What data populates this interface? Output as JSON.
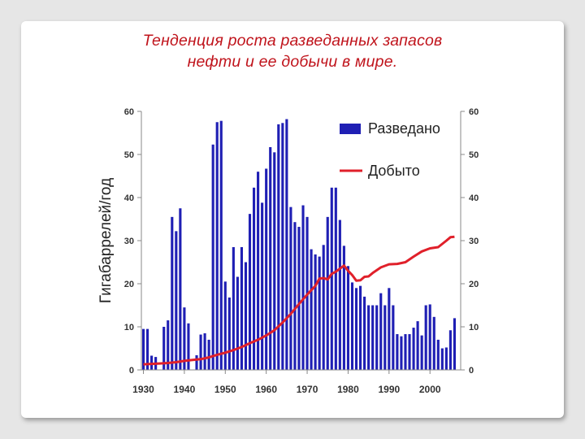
{
  "slide": {
    "title_line1": "Тенденция роста разведанных запасов",
    "title_line2": "нефти и ее добычи в мире."
  },
  "chart_data": {
    "type": "bar",
    "title": "",
    "ylabel": "Гигабаррелей/год",
    "ylim": [
      0,
      60
    ],
    "y_ticks": [
      0,
      10,
      20,
      30,
      40,
      50,
      60
    ],
    "x_ticks": [
      1930,
      1940,
      1950,
      1960,
      1970,
      1980,
      1990,
      2000
    ],
    "legend_position": "top-right",
    "colors": {
      "bars": "#1f1fb4",
      "line": "#e0202a",
      "axis": "#888888"
    },
    "series": [
      {
        "name": "Разведано",
        "type": "bar",
        "x": [
          1930,
          1931,
          1932,
          1933,
          1934,
          1935,
          1936,
          1937,
          1938,
          1939,
          1940,
          1941,
          1942,
          1943,
          1944,
          1945,
          1946,
          1947,
          1948,
          1949,
          1950,
          1951,
          1952,
          1953,
          1954,
          1955,
          1956,
          1957,
          1958,
          1959,
          1960,
          1961,
          1962,
          1963,
          1964,
          1965,
          1966,
          1967,
          1968,
          1969,
          1970,
          1971,
          1972,
          1973,
          1974,
          1975,
          1976,
          1977,
          1978,
          1979,
          1980,
          1981,
          1982,
          1983,
          1984,
          1985,
          1986,
          1987,
          1988,
          1989,
          1990,
          1991,
          1992,
          1993,
          1994,
          1995,
          1996,
          1997,
          1998,
          1999,
          2000,
          2001,
          2002,
          2003,
          2004,
          2005,
          2006
        ],
        "values": [
          9.5,
          9.5,
          3.3,
          3,
          0,
          10,
          11.5,
          35.5,
          32.2,
          37.5,
          14.5,
          10.8,
          0,
          3.4,
          8.2,
          8.5,
          7,
          52.3,
          57.5,
          57.8,
          20.5,
          16.8,
          28.5,
          21.6,
          28.5,
          25,
          36.2,
          42.3,
          46,
          38.8,
          46.7,
          51.7,
          50.5,
          57,
          57.3,
          58.2,
          37.8,
          34.3,
          33.2,
          38.2,
          35.5,
          28,
          26.8,
          26.3,
          29,
          35.5,
          42.3,
          42.3,
          34.8,
          28.8,
          24.1,
          20.3,
          19,
          19.5,
          17,
          15,
          15,
          15,
          17.8,
          15,
          19,
          15,
          8.3,
          7.8,
          8.3,
          8.3,
          9.8,
          11.3,
          8,
          15,
          15.2,
          12.3,
          7,
          5,
          5.2,
          9.2,
          12
        ]
      },
      {
        "name": "Добыто",
        "type": "line",
        "x": [
          1930,
          1932,
          1934,
          1936,
          1938,
          1940,
          1942,
          1944,
          1946,
          1948,
          1950,
          1952,
          1954,
          1956,
          1958,
          1960,
          1962,
          1964,
          1966,
          1968,
          1970,
          1972,
          1973,
          1974,
          1975,
          1976,
          1977,
          1978,
          1979,
          1980,
          1981,
          1982,
          1983,
          1984,
          1985,
          1986,
          1988,
          1990,
          1992,
          1994,
          1996,
          1998,
          2000,
          2002,
          2004,
          2005,
          2006
        ],
        "values": [
          1.3,
          1.4,
          1.5,
          1.6,
          1.8,
          2.1,
          2.3,
          2.5,
          2.9,
          3.5,
          4,
          4.6,
          5.3,
          6.2,
          7,
          8,
          9.2,
          11,
          13,
          15.3,
          17.5,
          19.5,
          21.2,
          21.3,
          21,
          22.3,
          22.8,
          23.5,
          24.2,
          23,
          22,
          20.7,
          20.8,
          21.6,
          21.7,
          22.5,
          23.8,
          24.5,
          24.6,
          25,
          26.3,
          27.5,
          28.2,
          28.5,
          30,
          30.8,
          30.9
        ]
      }
    ]
  }
}
